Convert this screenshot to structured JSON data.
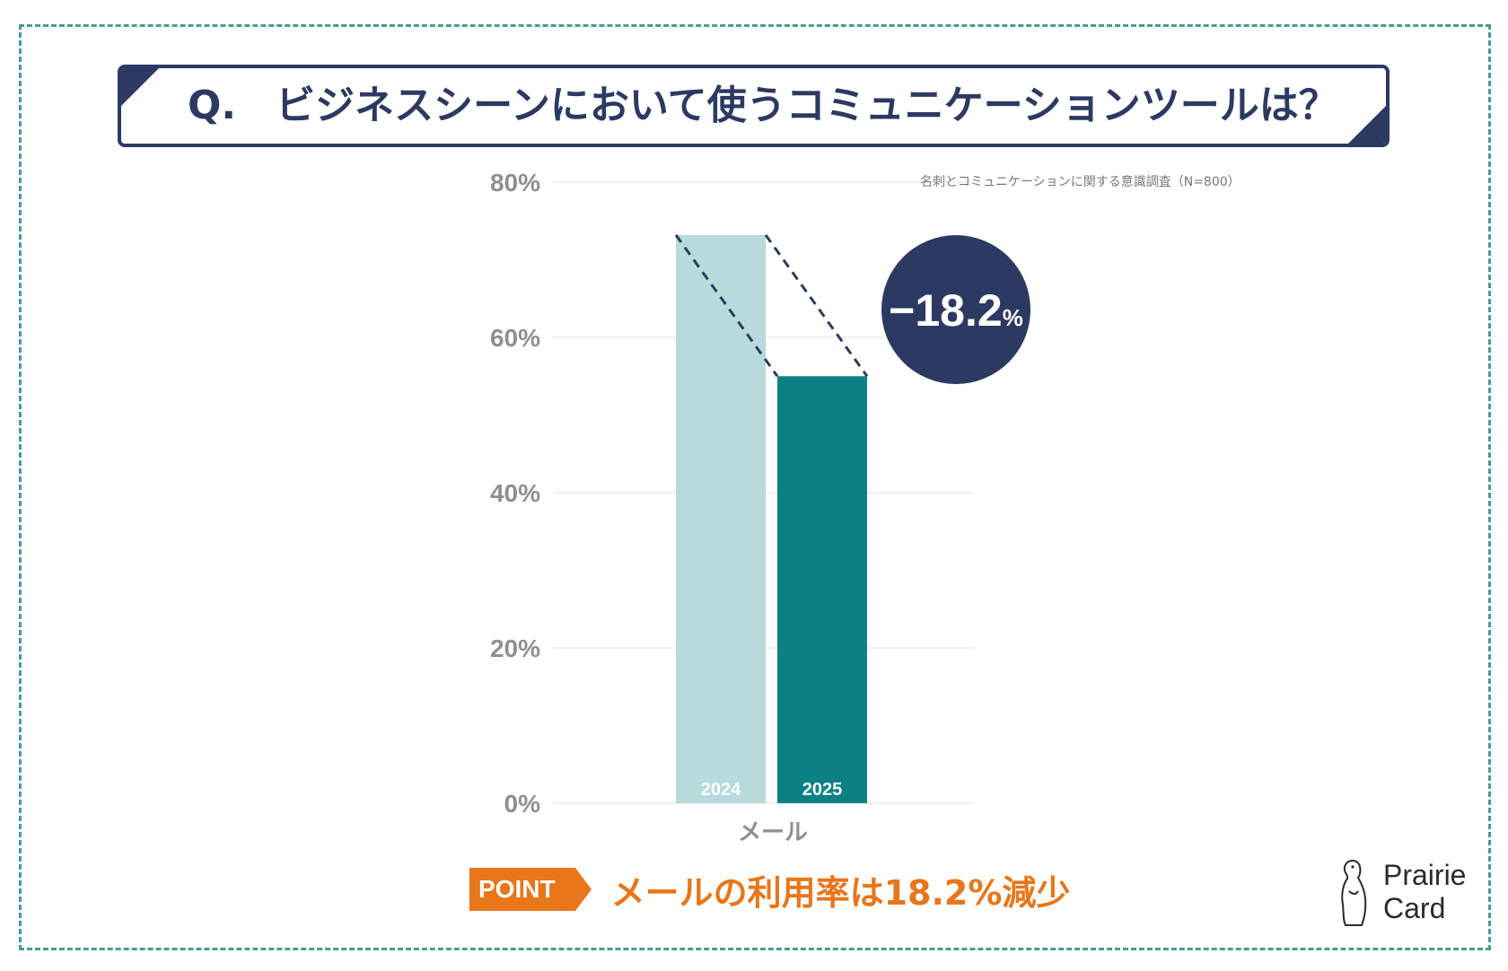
{
  "header": {
    "q_label": "Q.",
    "question": "ビジネスシーンにおいて使うコミュニケーションツールは？"
  },
  "chart_data": {
    "type": "bar",
    "category": "メール",
    "series": [
      {
        "name": "2024",
        "value": 73.2,
        "color": "#b7dadc"
      },
      {
        "name": "2025",
        "value": 55.0,
        "color": "#0b8085"
      }
    ],
    "ylim": [
      0,
      80
    ],
    "yticks": [
      0,
      20,
      40,
      60,
      80
    ],
    "ytick_labels": [
      "0%",
      "20%",
      "40%",
      "60%",
      "80%"
    ],
    "source": "名刺とコミュニケーションに関する意識調査（N=800）",
    "change_label": "−18.2",
    "change_unit": "%",
    "grid": true
  },
  "point": {
    "badge": "POINT",
    "text": "メールの利用率は18.2%減少"
  },
  "logo": {
    "line1": "Prairie",
    "line2": "Card"
  },
  "colors": {
    "navy": "#2c3a63",
    "teal_light": "#b7dadc",
    "teal_dark": "#0b8085",
    "orange": "#e8761a",
    "frame": "#4a9a98",
    "axis_text": "#8c9190"
  }
}
